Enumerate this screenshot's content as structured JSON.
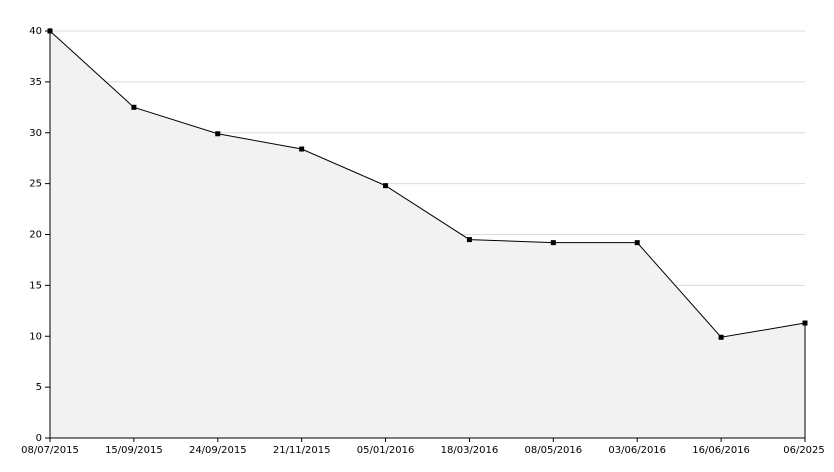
{
  "chart_data": {
    "type": "area",
    "categories": [
      "08/07/2015",
      "15/09/2015",
      "24/09/2015",
      "21/11/2015",
      "05/01/2016",
      "18/03/2016",
      "08/05/2016",
      "03/06/2016",
      "16/06/2016",
      "06/2025"
    ],
    "values": [
      40,
      32.5,
      29.9,
      28.4,
      24.8,
      19.5,
      19.2,
      19.2,
      9.9,
      11.3
    ],
    "color": "#000000",
    "fill": "#f2f2f2",
    "ylim": [
      0,
      40
    ],
    "yticks": [
      0,
      5,
      10,
      15,
      20,
      25,
      30,
      35,
      40
    ],
    "grid": true
  }
}
